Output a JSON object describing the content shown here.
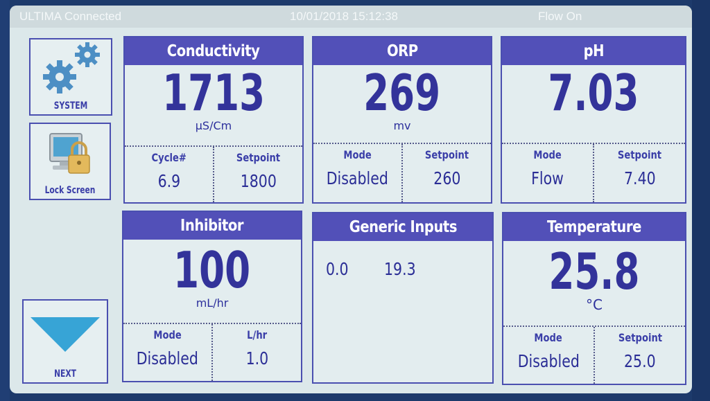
{
  "status_bar": {
    "title": "ULTIMA Connected",
    "datetime": "10/01/2018  15:12:38",
    "flow": "Flow  On"
  },
  "side_buttons": {
    "system": {
      "label": "SYSTEM",
      "icon": "gears-icon"
    },
    "lock": {
      "label": "Lock Screen",
      "icon": "padlock-monitor-icon"
    },
    "next": {
      "label": "NEXT",
      "icon": "triangle-down-icon"
    }
  },
  "panels": {
    "conductivity": {
      "title": "Conductivity",
      "value": "1713",
      "unit": "μS/Cm",
      "left_caption": "Cycle#",
      "left_value": "6.9",
      "right_caption": "Setpoint",
      "right_value": "1800"
    },
    "orp": {
      "title": "ORP",
      "value": "269",
      "unit": "mv",
      "left_caption": "Mode",
      "left_value": "Disabled",
      "right_caption": "Setpoint",
      "right_value": "260"
    },
    "ph": {
      "title": "pH",
      "value": "7.03",
      "unit": "",
      "left_caption": "Mode",
      "left_value": "Flow",
      "right_caption": "Setpoint",
      "right_value": "7.40"
    },
    "inhibitor": {
      "title": "Inhibitor",
      "value": "100",
      "unit": "mL/hr",
      "left_caption": "Mode",
      "left_value": "Disabled",
      "right_caption": "L/hr",
      "right_value": "1.0"
    },
    "generic": {
      "title": "Generic Inputs",
      "value_1": "0.0",
      "value_2": "19.3"
    },
    "temperature": {
      "title": "Temperature",
      "value": "25.8",
      "unit": "°C",
      "left_caption": "Mode",
      "left_value": "Disabled",
      "right_caption": "Setpoint",
      "right_value": "25.0"
    }
  },
  "colors": {
    "header": "#5250b8",
    "border": "#4a4fb0",
    "text": "#33339a",
    "screen_bg": "#dce8ea",
    "bezel": "#1d3a6b",
    "gear": "#4d8fc4",
    "next_arrow": "#37a4d6"
  }
}
